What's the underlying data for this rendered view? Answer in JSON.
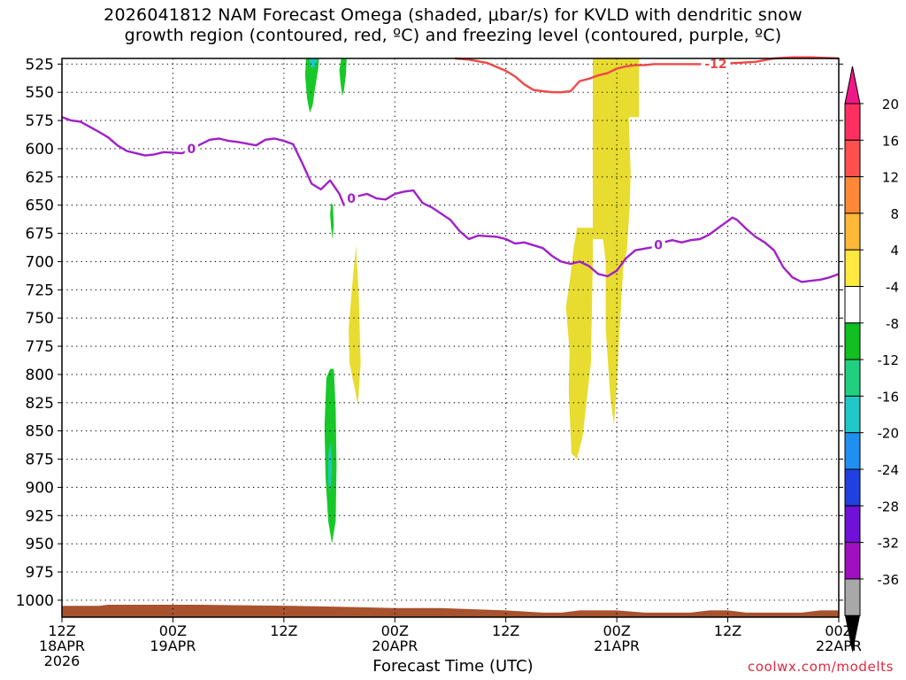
{
  "title": {
    "line1": "2026041812 NAM Forecast Omega (shaded, μbar/s) for KVLD with dendritic snow",
    "line2": "growth region (contoured, red, ºC) and freezing level (contoured, purple, ºC)"
  },
  "credit": "coolwx.com/modelts",
  "chart_data": {
    "type": "area",
    "xlabel": "Forecast Time (UTC)",
    "ylabel": "",
    "x_range_hours": [
      0,
      84
    ],
    "y_range_hpa": [
      520,
      1015
    ],
    "y_axis": "pressure (reversed)",
    "grid": true,
    "x_ticks": [
      {
        "h": 0,
        "l1": "12Z",
        "l2": "18APR",
        "l3": "2026"
      },
      {
        "h": 12,
        "l1": "00Z",
        "l2": "19APR",
        "l3": ""
      },
      {
        "h": 24,
        "l1": "12Z",
        "l2": "",
        "l3": ""
      },
      {
        "h": 36,
        "l1": "00Z",
        "l2": "20APR",
        "l3": ""
      },
      {
        "h": 48,
        "l1": "12Z",
        "l2": "",
        "l3": ""
      },
      {
        "h": 60,
        "l1": "00Z",
        "l2": "21APR",
        "l3": ""
      },
      {
        "h": 72,
        "l1": "12Z",
        "l2": "",
        "l3": ""
      },
      {
        "h": 84,
        "l1": "00Z",
        "l2": "22APR",
        "l3": ""
      }
    ],
    "y_ticks": [
      "525",
      "550",
      "575",
      "600",
      "625",
      "650",
      "675",
      "700",
      "725",
      "750",
      "775",
      "800",
      "825",
      "850",
      "875",
      "900",
      "925",
      "950",
      "975",
      "1000"
    ],
    "colorbar": {
      "position": "right",
      "labels": [
        "20",
        "16",
        "12",
        "8",
        "4",
        "-4",
        "-8",
        "-12",
        "-16",
        "-20",
        "-24",
        "-28",
        "-32",
        "-36"
      ],
      "colors": [
        "#ff3060",
        "#ff5050",
        "#ff8838",
        "#ffb838",
        "#ffe840",
        "#ffffff",
        "#10c020",
        "#20d080",
        "#20c8c8",
        "#2090f0",
        "#2040e0",
        "#7010d8",
        "#a010c0",
        "#a8a8a8"
      ]
    },
    "freezing_level": {
      "name": "0",
      "color": "#a020c8",
      "points": [
        [
          0,
          572
        ],
        [
          1,
          575
        ],
        [
          2,
          576
        ],
        [
          4,
          585
        ],
        [
          5,
          590
        ],
        [
          6,
          597
        ],
        [
          7,
          602
        ],
        [
          8,
          604
        ],
        [
          9,
          606
        ],
        [
          10,
          605
        ],
        [
          11,
          603
        ],
        [
          13,
          604
        ],
        [
          14,
          600
        ],
        [
          15,
          596
        ],
        [
          16,
          592
        ],
        [
          17,
          591
        ],
        [
          18,
          593
        ],
        [
          19,
          594
        ],
        [
          21,
          597
        ],
        [
          22,
          592
        ],
        [
          23,
          591
        ],
        [
          24,
          593
        ],
        [
          25,
          596
        ],
        [
          26,
          613
        ],
        [
          27,
          631
        ],
        [
          28,
          636
        ],
        [
          28.5,
          632
        ],
        [
          29,
          628
        ],
        [
          30,
          640
        ],
        [
          30.5,
          650
        ],
        [
          31,
          645
        ],
        [
          32,
          642
        ],
        [
          33,
          640
        ],
        [
          34,
          644
        ],
        [
          35,
          645
        ],
        [
          36,
          640
        ],
        [
          37,
          638
        ],
        [
          38,
          637
        ],
        [
          39,
          648
        ],
        [
          40,
          652
        ],
        [
          42,
          663
        ],
        [
          43,
          673
        ],
        [
          44,
          680
        ],
        [
          45,
          677
        ],
        [
          47,
          678
        ],
        [
          48,
          680
        ],
        [
          49,
          684
        ],
        [
          50,
          683
        ],
        [
          52,
          688
        ],
        [
          53,
          695
        ],
        [
          54,
          700
        ],
        [
          55,
          702
        ],
        [
          56,
          700
        ],
        [
          57,
          704
        ],
        [
          58,
          711
        ],
        [
          59,
          713
        ],
        [
          60,
          708
        ],
        [
          61,
          697
        ],
        [
          62,
          690
        ],
        [
          64,
          687
        ],
        [
          65,
          683
        ],
        [
          66,
          681
        ],
        [
          67,
          683
        ],
        [
          68,
          681
        ],
        [
          69,
          680
        ],
        [
          70,
          676
        ],
        [
          71,
          670
        ],
        [
          72,
          664
        ],
        [
          72.5,
          661
        ],
        [
          73,
          663
        ],
        [
          74,
          671
        ],
        [
          75,
          678
        ],
        [
          76,
          683
        ],
        [
          77,
          690
        ],
        [
          78,
          705
        ],
        [
          79,
          714
        ],
        [
          80,
          718
        ],
        [
          81,
          717
        ],
        [
          82,
          716
        ],
        [
          83,
          714
        ],
        [
          84,
          711
        ]
      ]
    },
    "dgz_minus12": {
      "name": "-12",
      "color": "#f04848",
      "points": [
        [
          42.5,
          520
        ],
        [
          44,
          521
        ],
        [
          46,
          524
        ],
        [
          48,
          531
        ],
        [
          49,
          536
        ],
        [
          50,
          543
        ],
        [
          51,
          548
        ],
        [
          52,
          549
        ],
        [
          53,
          550
        ],
        [
          54,
          550
        ],
        [
          55,
          549
        ],
        [
          56,
          540
        ],
        [
          57,
          538
        ],
        [
          58,
          535
        ],
        [
          59,
          533
        ],
        [
          60,
          529
        ],
        [
          61,
          527
        ],
        [
          62,
          526
        ],
        [
          63,
          526
        ],
        [
          64,
          525
        ],
        [
          70,
          525
        ],
        [
          73,
          524
        ],
        [
          75,
          523
        ],
        [
          77,
          520
        ],
        [
          79,
          519
        ],
        [
          81,
          519
        ],
        [
          84,
          520
        ]
      ]
    },
    "omega_regions": [
      {
        "value": -10,
        "color": "#18c828",
        "points": [
          [
            26.4,
            520
          ],
          [
            27.8,
            520
          ],
          [
            27.7,
            530
          ],
          [
            27.4,
            545
          ],
          [
            27.1,
            562
          ],
          [
            26.8,
            568
          ],
          [
            26.5,
            555
          ],
          [
            26.3,
            535
          ]
        ]
      },
      {
        "value": -14,
        "color": "#20c8b8",
        "points": [
          [
            26.7,
            520
          ],
          [
            27.6,
            520
          ],
          [
            27.5,
            526
          ],
          [
            27.0,
            529
          ],
          [
            26.8,
            525
          ]
        ]
      },
      {
        "value": -8,
        "color": "#18c828",
        "points": [
          [
            30.2,
            520
          ],
          [
            30.8,
            520
          ],
          [
            30.7,
            535
          ],
          [
            30.5,
            548
          ],
          [
            30.3,
            553
          ],
          [
            30.1,
            540
          ],
          [
            30.0,
            530
          ]
        ]
      },
      {
        "value": -8,
        "color": "#18c828",
        "points": [
          [
            29.1,
            648
          ],
          [
            29.3,
            650
          ],
          [
            29.4,
            668
          ],
          [
            29.25,
            680
          ],
          [
            29.1,
            670
          ],
          [
            29.0,
            658
          ]
        ]
      },
      {
        "value": 6,
        "color": "#e8dc30",
        "points": [
          [
            31.0,
            760
          ],
          [
            31.4,
            720
          ],
          [
            31.8,
            686
          ],
          [
            32.1,
            730
          ],
          [
            32.3,
            790
          ],
          [
            32.0,
            827
          ],
          [
            31.6,
            810
          ],
          [
            31.1,
            790
          ]
        ]
      },
      {
        "value": -9,
        "color": "#18c828",
        "points": [
          [
            28.6,
            803
          ],
          [
            29.0,
            795
          ],
          [
            29.4,
            795
          ],
          [
            29.6,
            830
          ],
          [
            29.7,
            880
          ],
          [
            29.6,
            930
          ],
          [
            29.2,
            950
          ],
          [
            28.8,
            930
          ],
          [
            28.5,
            890
          ],
          [
            28.4,
            845
          ]
        ]
      },
      {
        "value": -14,
        "color": "#20c8b8",
        "points": [
          [
            28.8,
            870
          ],
          [
            29.1,
            860
          ],
          [
            29.2,
            885
          ],
          [
            29.0,
            905
          ],
          [
            28.8,
            895
          ]
        ]
      },
      {
        "value": 6,
        "color": "#e8dc30",
        "points": [
          [
            57.4,
            520
          ],
          [
            62.4,
            520
          ],
          [
            62.4,
            572
          ],
          [
            61.3,
            572
          ],
          [
            61.4,
            600
          ],
          [
            61.5,
            620
          ],
          [
            61.4,
            650
          ],
          [
            61.1,
            690
          ],
          [
            60.7,
            705
          ],
          [
            60.3,
            760
          ],
          [
            60.0,
            810
          ],
          [
            59.7,
            845
          ],
          [
            59.3,
            820
          ],
          [
            58.8,
            760
          ],
          [
            58.8,
            700
          ],
          [
            58.5,
            680
          ],
          [
            57.4,
            680
          ],
          [
            57.4,
            700
          ],
          [
            57.2,
            790
          ],
          [
            56.3,
            855
          ],
          [
            55.7,
            875
          ],
          [
            55.1,
            870
          ],
          [
            54.8,
            815
          ],
          [
            54.9,
            780
          ],
          [
            54.5,
            740
          ],
          [
            55.0,
            712
          ],
          [
            55.3,
            690
          ],
          [
            55.5,
            680
          ],
          [
            55.7,
            670
          ],
          [
            57.4,
            670
          ]
        ]
      }
    ],
    "terrain": {
      "color": "#a8522e",
      "points": [
        [
          0,
          1005
        ],
        [
          4,
          1005
        ],
        [
          5,
          1004
        ],
        [
          15,
          1004
        ],
        [
          25,
          1005
        ],
        [
          31,
          1006
        ],
        [
          36,
          1007
        ],
        [
          41,
          1007
        ],
        [
          48,
          1009
        ],
        [
          52,
          1011
        ],
        [
          54,
          1011
        ],
        [
          56,
          1009
        ],
        [
          60,
          1009
        ],
        [
          63,
          1011
        ],
        [
          68,
          1011
        ],
        [
          70,
          1009
        ],
        [
          72,
          1009
        ],
        [
          74,
          1011
        ],
        [
          80,
          1011
        ],
        [
          82,
          1009
        ],
        [
          84,
          1009
        ]
      ]
    }
  }
}
